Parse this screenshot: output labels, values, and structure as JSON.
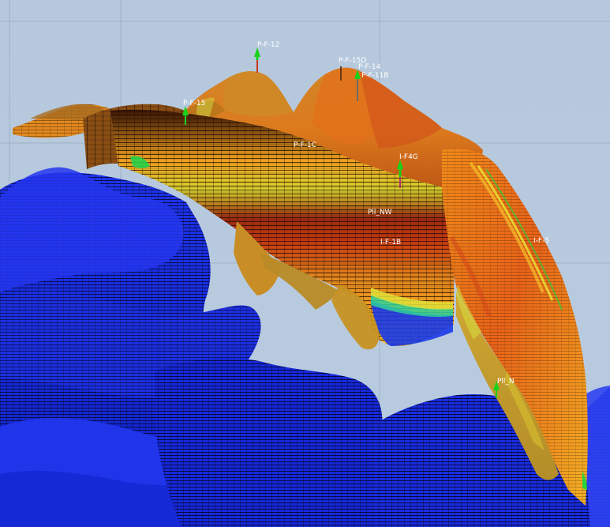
{
  "scene": {
    "background": "#b8cadf",
    "colors": {
      "blue_surface": "#1f2fe0",
      "blue_dark": "#0a1690",
      "orange_top": "#d9801c",
      "orange_bright": "#f28a1a",
      "red_mid": "#c23a12",
      "yellow": "#d9c52a",
      "green_well": "#19d21b"
    }
  },
  "wells": [
    {
      "name": "P-F-12",
      "label": "P-F-12",
      "icon": "well-marker-icon",
      "color": "#19d21b"
    },
    {
      "name": "P-F-15D",
      "label": "P-F-15D",
      "icon": "well-marker-icon",
      "color": "#19d21b"
    },
    {
      "name": "P-F-14",
      "label": "P-F-14",
      "icon": "well-marker-icon",
      "color": "#19d21b"
    },
    {
      "name": "P-F-11B",
      "label": "P-F-11B",
      "icon": "well-marker-icon",
      "color": "#19d21b"
    },
    {
      "name": "P-F-15",
      "label": "P-F-15",
      "icon": "well-marker-icon",
      "color": "#19d21b"
    },
    {
      "name": "P-F-1C",
      "label": "P-F-1C",
      "icon": "well-marker-icon",
      "color": "#19d21b"
    },
    {
      "name": "I-F4G",
      "label": "I-F4G",
      "icon": "well-marker-icon",
      "color": "#19d21b"
    },
    {
      "name": "Pll_NW",
      "label": "Pll_NW",
      "icon": "",
      "color": "#ffffff"
    },
    {
      "name": "I-F-1B",
      "label": "I-F-1B",
      "icon": "",
      "color": "#ffffff"
    },
    {
      "name": "I-F-5",
      "label": "I-F-5",
      "icon": "",
      "color": "#ffffff"
    },
    {
      "name": "Pll_N",
      "label": "Pll_N",
      "icon": "well-marker-icon",
      "color": "#19d21b"
    }
  ]
}
